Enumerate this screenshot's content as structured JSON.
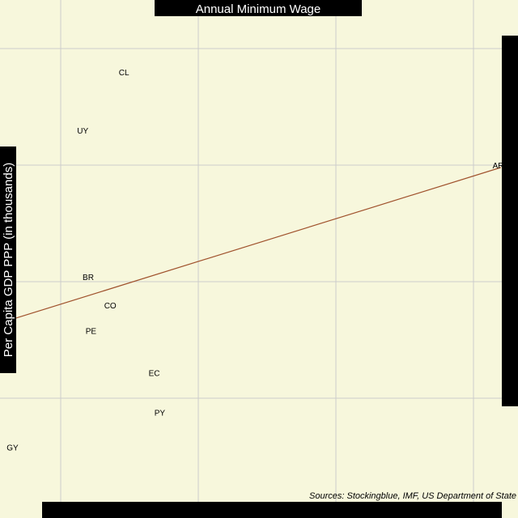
{
  "chart_data": {
    "type": "scatter",
    "title": "Annual Minimum Wage",
    "ylabel": "Per Capita GDP PPP (in thousands)",
    "xlabel": "",
    "source": "Sources: Stockingblue, IMF, US Department of State",
    "xlim": [
      3000,
      21000
    ],
    "ylim": [
      6.5,
      27
    ],
    "x_ticks": [
      5000,
      10000,
      15000,
      20000
    ],
    "y_ticks": [
      10,
      15,
      20,
      25
    ],
    "grid": true,
    "points": [
      {
        "label": "CL",
        "x": 7300,
        "y": 24.0
      },
      {
        "label": "UY",
        "x": 5800,
        "y": 21.5
      },
      {
        "label": "AR",
        "x": 20900,
        "y": 20.0
      },
      {
        "label": "BR",
        "x": 6000,
        "y": 15.2
      },
      {
        "label": "CO",
        "x": 6800,
        "y": 14.0
      },
      {
        "label": "PE",
        "x": 6100,
        "y": 12.9
      },
      {
        "label": "EC",
        "x": 8400,
        "y": 11.1
      },
      {
        "label": "PY",
        "x": 8600,
        "y": 9.4
      },
      {
        "label": "GY",
        "x": 3250,
        "y": 7.9
      }
    ],
    "trendline": {
      "x": [
        3000,
        21000
      ],
      "y": [
        13.3,
        19.9
      ]
    },
    "colors": {
      "background": "#f7f7dc",
      "grid": "#cccccc",
      "trendline": "#a0522d",
      "label_box": "#000000"
    }
  }
}
